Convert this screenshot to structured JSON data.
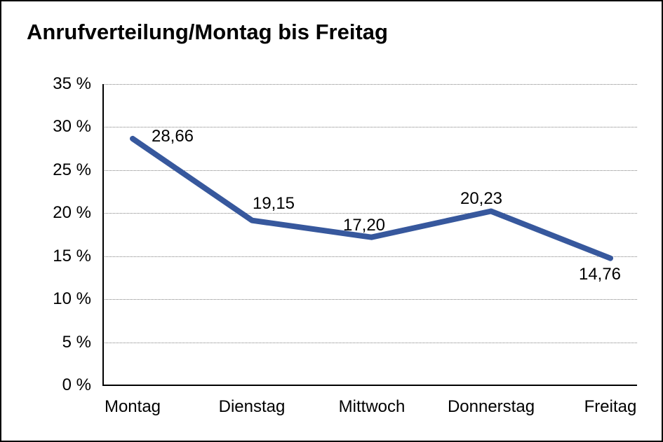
{
  "window": {
    "background_color": "#ffffff",
    "border_color": "#000000"
  },
  "chart_data": {
    "type": "line",
    "title": "Anrufverteilung/Montag bis Freitag",
    "categories": [
      "Montag",
      "Dienstag",
      "Mittwoch",
      "Donnerstag",
      "Freitag"
    ],
    "values": [
      28.66,
      19.15,
      17.2,
      20.23,
      14.76
    ],
    "value_labels": [
      "28,66",
      "19,15",
      "17,20",
      "20,23",
      "14,76"
    ],
    "series_name": "Anrufverteilung",
    "xlabel": "",
    "ylabel": "",
    "ylim": [
      0,
      35
    ],
    "y_tick_values": [
      0,
      5,
      10,
      15,
      20,
      25,
      30,
      35
    ],
    "y_tick_labels": [
      "0 %",
      "5 %",
      "10 %",
      "15 %",
      "20 %",
      "25 %",
      "30 %",
      "35 %"
    ],
    "grid": "horizontal-dotted",
    "legend": "none",
    "line_color": "#37589D",
    "grid_color": "#808080",
    "axis_color": "#000000",
    "text_color": "#000000"
  }
}
